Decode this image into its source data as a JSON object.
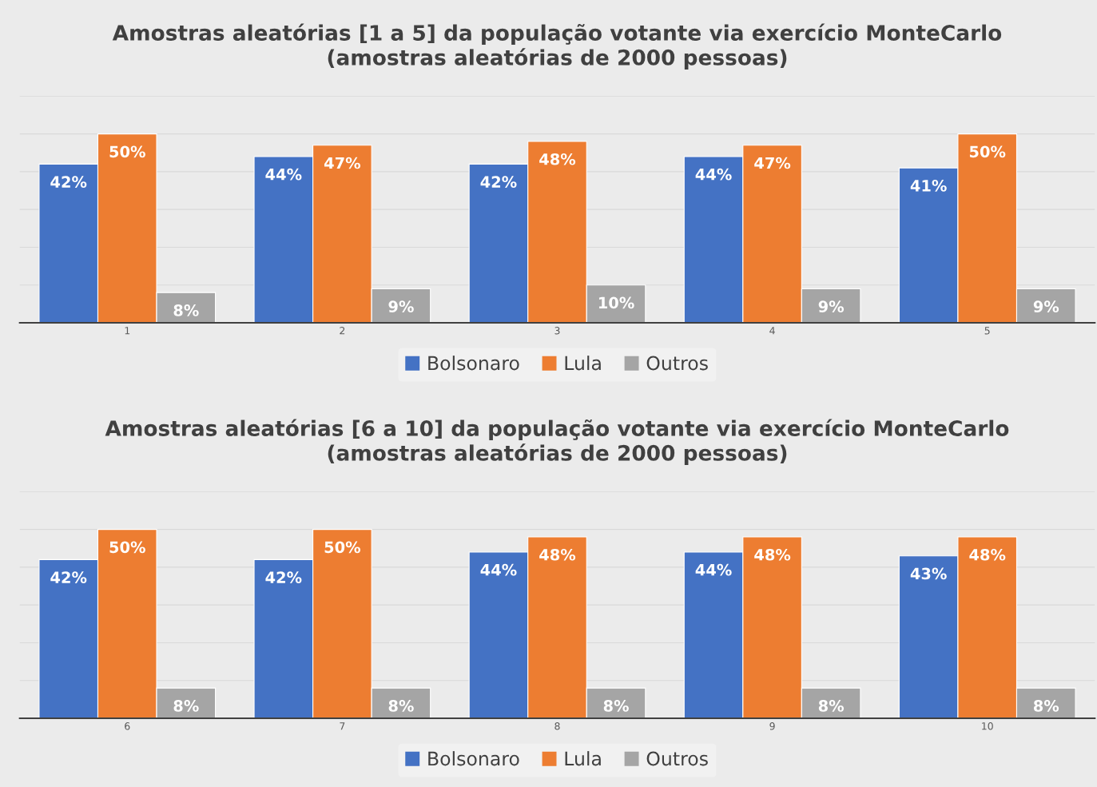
{
  "chart_data": [
    {
      "type": "bar",
      "title": "Amostras aleatórias [1 a 5] da população votante via exercício MonteCarlo\n(amostras aleatórias de 2000 pessoas)",
      "categories": [
        "1",
        "2",
        "3",
        "4",
        "5"
      ],
      "series": [
        {
          "name": "Bolsonaro",
          "color": "#4472c4",
          "values": [
            42,
            44,
            42,
            44,
            41
          ],
          "value_labels": [
            "42%",
            "44%",
            "42%",
            "44%",
            "41%"
          ]
        },
        {
          "name": "Lula",
          "color": "#ed7d31",
          "values": [
            50,
            47,
            48,
            47,
            50
          ],
          "value_labels": [
            "50%",
            "47%",
            "48%",
            "47%",
            "50%"
          ]
        },
        {
          "name": "Outros",
          "color": "#a5a5a5",
          "values": [
            8,
            9,
            10,
            9,
            9
          ],
          "value_labels": [
            "8%",
            "9%",
            "10%",
            "9%",
            "9%"
          ]
        }
      ],
      "ylim": [
        0,
        60
      ],
      "yticks": [
        {
          "value": 0,
          "label": null
        },
        {
          "value": 10,
          "label": null
        },
        {
          "value": 20,
          "label": null
        },
        {
          "value": 30,
          "label": null
        },
        {
          "value": 40,
          "label": null
        },
        {
          "value": 50,
          "label": null
        },
        {
          "value": 60,
          "label": null
        }
      ],
      "tick_labels": "x",
      "grid": "y",
      "legend": "bottom"
    },
    {
      "type": "bar",
      "title": "Amostras aleatórias [6 a 10] da população votante via exercício MonteCarlo\n(amostras aleatórias de 2000 pessoas)",
      "categories": [
        "6",
        "7",
        "8",
        "9",
        "10"
      ],
      "series": [
        {
          "name": "Bolsonaro",
          "color": "#4472c4",
          "values": [
            42,
            42,
            44,
            44,
            43
          ],
          "value_labels": [
            "42%",
            "42%",
            "44%",
            "44%",
            "43%"
          ]
        },
        {
          "name": "Lula",
          "color": "#ed7d31",
          "values": [
            50,
            50,
            48,
            48,
            48
          ],
          "value_labels": [
            "50%",
            "50%",
            "48%",
            "48%",
            "48%"
          ]
        },
        {
          "name": "Outros",
          "color": "#a5a5a5",
          "values": [
            8,
            8,
            8,
            8,
            8
          ],
          "value_labels": [
            "8%",
            "8%",
            "8%",
            "8%",
            "8%"
          ]
        }
      ],
      "ylim": [
        0,
        60
      ],
      "yticks": [
        {
          "value": 0,
          "label": null
        },
        {
          "value": 10,
          "label": null
        },
        {
          "value": 20,
          "label": null
        },
        {
          "value": 30,
          "label": null
        },
        {
          "value": 40,
          "label": null
        },
        {
          "value": 50,
          "label": null
        },
        {
          "value": 60,
          "label": null
        }
      ],
      "tick_labels": "x",
      "grid": "y",
      "legend": "bottom"
    }
  ]
}
